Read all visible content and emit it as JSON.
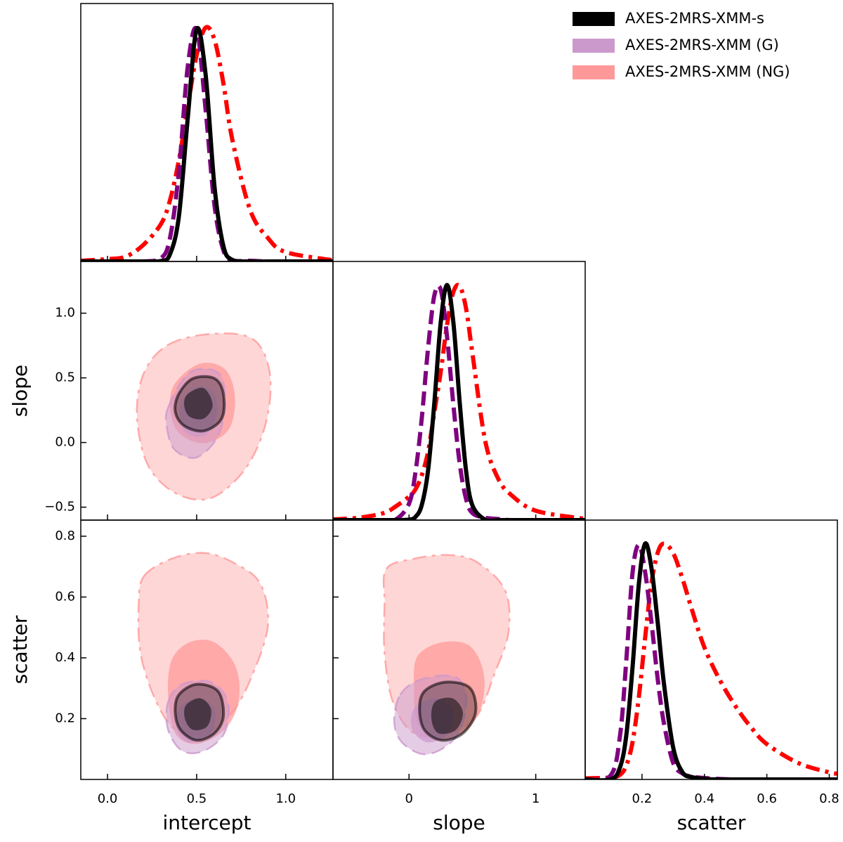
{
  "chart_data": {
    "type": "corner",
    "series": [
      {
        "name": "AXES-2MRS-XMM-s",
        "color": "#000000",
        "fill": "#000000",
        "linestyle": "solid"
      },
      {
        "name": "AXES-2MRS-XMM (G)",
        "color": "#800080",
        "fill": "#cc99cc",
        "linestyle": "dashed"
      },
      {
        "name": "AXES-2MRS-XMM (NG)",
        "color": "#ff0000",
        "fill": "#ff9999",
        "linestyle": "dashdot"
      }
    ],
    "variables": [
      {
        "label": "intercept",
        "xlim": [
          -0.15,
          1.265
        ],
        "xticks": [
          {
            "value": 0,
            "label": "0.0"
          },
          0.5,
          {
            "value": 1,
            "label": "1.0"
          }
        ],
        "marginal": {
          "ylim": [
            0,
            1.1
          ],
          "x": [
            -0.15,
            0.0,
            0.1,
            0.2,
            0.3,
            0.35,
            0.4,
            0.45,
            0.5,
            0.55,
            0.6,
            0.65,
            0.7,
            0.8,
            0.9,
            1.0,
            1.265
          ],
          "series": [
            [
              0,
              0,
              0,
              0,
              0.002,
              0.03,
              0.19,
              0.61,
              0.99,
              0.8,
              0.32,
              0.066,
              0.007,
              0,
              0,
              0,
              0
            ],
            [
              0,
              0,
              0,
              0,
              0.014,
              0.098,
              0.38,
              0.83,
              0.99,
              0.65,
              0.24,
              0.048,
              0.005,
              0.003,
              0,
              0,
              0
            ],
            [
              0.003,
              0.01,
              0.02,
              0.07,
              0.16,
              0.26,
              0.43,
              0.66,
              0.88,
              0.997,
              0.946,
              0.76,
              0.52,
              0.22,
              0.1,
              0.04,
              0.005
            ]
          ]
        }
      },
      {
        "label": "slope",
        "xlim": [
          -0.6,
          1.39
        ],
        "xticks": [
          0,
          1
        ],
        "ylim": [
          -0.6,
          1.4
        ],
        "yticks": [
          {
            "value": -0.5,
            "label": "−0.5"
          },
          {
            "value": 0,
            "label": "0.0"
          },
          0.5,
          {
            "value": 1,
            "label": "1.0"
          }
        ],
        "marginal": {
          "ylim": [
            0,
            1.1
          ],
          "x": [
            -0.6,
            -0.4,
            -0.2,
            -0.1,
            0,
            0.05,
            0.1,
            0.15,
            0.2,
            0.25,
            0.3,
            0.35,
            0.4,
            0.45,
            0.5,
            0.6,
            0.7,
            0.8,
            1.0,
            1.39
          ],
          "series": [
            [
              0,
              0,
              0,
              0,
              0.002,
              0.013,
              0.063,
              0.21,
              0.5,
              0.84,
              1,
              0.84,
              0.5,
              0.21,
              0.063,
              0.002,
              0,
              0,
              0,
              0
            ],
            [
              0,
              0,
              0,
              0.004,
              0.07,
              0.2,
              0.43,
              0.73,
              0.956,
              0.98,
              0.78,
              0.49,
              0.24,
              0.09,
              0.03,
              0.01,
              0.005,
              0,
              0,
              0
            ],
            [
              0.003,
              0.01,
              0.03,
              0.06,
              0.1,
              0.13,
              0.19,
              0.29,
              0.46,
              0.63,
              0.83,
              0.97,
              0.995,
              0.9,
              0.71,
              0.34,
              0.18,
              0.11,
              0.04,
              0.005
            ]
          ]
        }
      },
      {
        "label": "scatter",
        "xlim": [
          0.018,
          0.826
        ],
        "xticks": [
          0.2,
          0.4,
          0.6,
          0.8
        ],
        "ylim": [
          0.0,
          0.853
        ],
        "yticks": [
          0.2,
          0.4,
          0.6,
          0.8
        ],
        "marginal": {
          "ylim": [
            0,
            1.1
          ],
          "x": [
            0.02,
            0.1,
            0.13,
            0.15,
            0.17,
            0.19,
            0.21,
            0.23,
            0.25,
            0.27,
            0.3,
            0.33,
            0.36,
            0.4,
            0.45,
            0.5,
            0.55,
            0.6,
            0.7,
            0.8,
            0.826
          ],
          "series": [
            [
              0,
              0,
              0.053,
              0.19,
              0.48,
              0.83,
              1,
              0.9,
              0.67,
              0.41,
              0.135,
              0.03,
              0.01,
              0.002,
              0,
              0,
              0,
              0,
              0,
              0,
              0
            ],
            [
              0,
              0.018,
              0.19,
              0.51,
              0.88,
              0.995,
              0.88,
              0.67,
              0.43,
              0.24,
              0.07,
              0.025,
              0.012,
              0.006,
              0.002,
              0,
              0,
              0,
              0,
              0,
              0
            ],
            [
              0.005,
              0.008,
              0.02,
              0.06,
              0.16,
              0.35,
              0.6,
              0.83,
              0.96,
              1.0,
              0.96,
              0.85,
              0.72,
              0.56,
              0.42,
              0.31,
              0.22,
              0.15,
              0.07,
              0.03,
              0.025
            ]
          ]
        }
      }
    ],
    "panels": [
      {
        "x": "intercept",
        "y": "slope",
        "contours": [
          {
            "levels": [
              {
                "x": [
                  0.4,
                  0.48,
                  0.6,
                  0.65,
                  0.64,
                  0.54,
                  0.43,
                  0.38
                ],
                "y": [
                  0.375,
                  0.495,
                  0.495,
                  0.375,
                  0.185,
                  0.09,
                  0.13,
                  0.24
                ]
              },
              {
                "x": [
                  0.45,
                  0.54,
                  0.59,
                  0.54,
                  0.46,
                  0.43
                ],
                "y": [
                  0.375,
                  0.42,
                  0.29,
                  0.185,
                  0.2,
                  0.29
                ]
              }
            ]
          },
          {
            "levels": [
              {
                "x": [
                  0.34,
                  0.46,
                  0.62,
                  0.66,
                  0.62,
                  0.5,
                  0.38,
                  0.335
                ],
                "y": [
                  0.27,
                  0.54,
                  0.54,
                  0.32,
                  0.05,
                  -0.115,
                  -0.06,
                  0.1
                ]
              },
              {
                "x": [
                  0.41,
                  0.5,
                  0.6,
                  0.61,
                  0.54,
                  0.43
                ],
                "y": [
                  0.29,
                  0.43,
                  0.375,
                  0.185,
                  0.05,
                  0.09
                ]
              }
            ]
          },
          {
            "levels": [
              {
                "x": [
                  0.34,
                  0.58,
                  0.815,
                  0.91,
                  0.89,
                  0.775,
                  0.58,
                  0.38,
                  0.225,
                  0.165,
                  0.205
                ],
                "y": [
                  0.755,
                  0.84,
                  0.8,
                  0.54,
                  0.16,
                  -0.2,
                  -0.43,
                  -0.39,
                  -0.17,
                  0.21,
                  0.54
                ]
              },
              {
                "x": [
                  0.38,
                  0.52,
                  0.66,
                  0.715,
                  0.68,
                  0.54,
                  0.4,
                  0.35
                ],
                "y": [
                  0.46,
                  0.61,
                  0.565,
                  0.35,
                  0.1,
                  -0.005,
                  0.075,
                  0.27
                ]
              }
            ]
          }
        ]
      },
      {
        "x": "intercept",
        "y": "scatter",
        "contours": [
          {
            "levels": [
              {
                "x": [
                  0.4,
                  0.5,
                  0.62,
                  0.65,
                  0.6,
                  0.5,
                  0.41,
                  0.38
                ],
                "y": [
                  0.278,
                  0.313,
                  0.29,
                  0.209,
                  0.152,
                  0.129,
                  0.163,
                  0.221
                ]
              },
              {
                "x": [
                  0.44,
                  0.52,
                  0.58,
                  0.56,
                  0.48,
                  0.435
                ],
                "y": [
                  0.244,
                  0.267,
                  0.232,
                  0.175,
                  0.163,
                  0.198
                ]
              }
            ]
          },
          {
            "levels": [
              {
                "x": [
                  0.34,
                  0.42,
                  0.58,
                  0.675,
                  0.655,
                  0.54,
                  0.42,
                  0.34
                ],
                "y": [
                  0.255,
                  0.313,
                  0.32,
                  0.255,
                  0.152,
                  0.094,
                  0.094,
                  0.163
                ]
              },
              {
                "x": [
                  0.4,
                  0.5,
                  0.6,
                  0.58,
                  0.46,
                  0.39
                ],
                "y": [
                  0.232,
                  0.267,
                  0.232,
                  0.152,
                  0.122,
                  0.163
                ]
              }
            ]
          },
          {
            "levels": [
              {
                "x": [
                  0.205,
                  0.36,
                  0.54,
                  0.7,
                  0.855,
                  0.9,
                  0.815,
                  0.7,
                  0.54,
                  0.38,
                  0.265,
                  0.185,
                  0.175
                ],
                "y": [
                  0.669,
                  0.726,
                  0.745,
                  0.715,
                  0.646,
                  0.508,
                  0.347,
                  0.221,
                  0.152,
                  0.163,
                  0.267,
                  0.416,
                  0.577
                ]
              },
              {
                "x": [
                  0.36,
                  0.46,
                  0.6,
                  0.72,
                  0.735,
                  0.655,
                  0.5,
                  0.38,
                  0.34
                ],
                "y": [
                  0.393,
                  0.451,
                  0.451,
                  0.37,
                  0.255,
                  0.163,
                  0.117,
                  0.152,
                  0.278
                ]
              }
            ]
          }
        ]
      },
      {
        "x": "slope",
        "y": "scatter",
        "contours": [
          {
            "levels": [
              {
                "x": [
                  0.122,
                  0.287,
                  0.48,
                  0.525,
                  0.425,
                  0.26,
                  0.122,
                  0.083
                ],
                "y": [
                  0.29,
                  0.32,
                  0.301,
                  0.221,
                  0.152,
                  0.129,
                  0.163,
                  0.232
                ]
              },
              {
                "x": [
                  0.204,
                  0.343,
                  0.425,
                  0.37,
                  0.232,
                  0.177
                ],
                "y": [
                  0.255,
                  0.267,
                  0.221,
                  0.163,
                  0.152,
                  0.198
                ]
              }
            ]
          },
          {
            "levels": [
              {
                "x": [
                  -0.07,
                  0.094,
                  0.37,
                  0.453,
                  0.37,
                  0.149,
                  -0.044,
                  -0.116
                ],
                "y": [
                  0.278,
                  0.329,
                  0.336,
                  0.255,
                  0.14,
                  0.083,
                  0.117,
                  0.186
                ]
              },
              {
                "x": [
                  0.039,
                  0.204,
                  0.343,
                  0.315,
                  0.149,
                  0.028
                ],
                "y": [
                  0.232,
                  0.267,
                  0.232,
                  0.152,
                  0.122,
                  0.163
                ]
              }
            ]
          },
          {
            "levels": [
              {
                "x": [
                  -0.18,
                  0.04,
                  0.315,
                  0.535,
                  0.757,
                  0.785,
                  0.674,
                  0.535,
                  0.315,
                  0.04,
                  -0.127,
                  -0.193,
                  -0.193
                ],
                "y": [
                  0.692,
                  0.726,
                  0.738,
                  0.715,
                  0.623,
                  0.485,
                  0.347,
                  0.209,
                  0.152,
                  0.152,
                  0.255,
                  0.416,
                  0.577
                ]
              },
              {
                "x": [
                  0.066,
                  0.26,
                  0.48,
                  0.59,
                  0.564,
                  0.425,
                  0.204,
                  0.066,
                  0.039
                ],
                "y": [
                  0.405,
                  0.451,
                  0.439,
                  0.347,
                  0.232,
                  0.152,
                  0.129,
                  0.186,
                  0.301
                ]
              }
            ]
          }
        ]
      }
    ]
  }
}
